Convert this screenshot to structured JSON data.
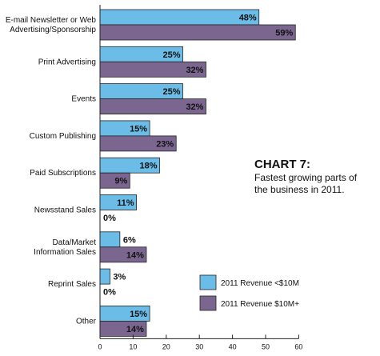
{
  "chart_data": {
    "type": "bar",
    "orientation": "horizontal",
    "title": "CHART 7:",
    "subtitle": "Fastest growing parts of the business in 2011.",
    "categories": [
      "E-mail Newsletter or Web Advertising/Sponsorship",
      "Print Advertising",
      "Events",
      "Custom Publishing",
      "Paid Subscriptions",
      "Newsstand Sales",
      "Data/Market Information Sales",
      "Reprint Sales",
      "Other"
    ],
    "category_lines": [
      [
        "E-mail Newsletter or Web",
        "Advertising/Sponsorship"
      ],
      [
        "Print Advertising"
      ],
      [
        "Events"
      ],
      [
        "Custom Publishing"
      ],
      [
        "Paid Subscriptions"
      ],
      [
        "Newsstand Sales"
      ],
      [
        "Data/Market",
        "Information Sales"
      ],
      [
        "Reprint Sales"
      ],
      [
        "Other"
      ]
    ],
    "series": [
      {
        "name": "2011 Revenue <$10M",
        "color": "#6bbde8",
        "values": [
          48,
          25,
          25,
          15,
          18,
          11,
          6,
          3,
          15
        ],
        "labels": [
          "48%",
          "25%",
          "25%",
          "15%",
          "18%",
          "11%",
          "6%",
          "3%",
          "15%"
        ]
      },
      {
        "name": "2011 Revenue $10M+",
        "color": "#7b6690",
        "values": [
          59,
          32,
          32,
          23,
          9,
          0,
          14,
          0,
          14
        ],
        "labels": [
          "59%",
          "32%",
          "32%",
          "23%",
          "9%",
          "0%",
          "14%",
          "0%",
          "14%"
        ]
      }
    ],
    "xlim": [
      0,
      60
    ],
    "xticks": [
      0,
      10,
      20,
      30,
      40,
      50,
      60
    ],
    "grid": false,
    "legend_position": "right"
  }
}
